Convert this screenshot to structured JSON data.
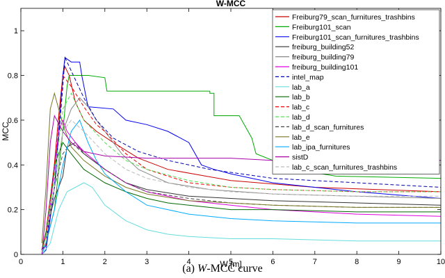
{
  "chart_data": {
    "type": "line",
    "title": "W-MCC",
    "xlabel": "W [m]",
    "ylabel": "MCC",
    "xlim": [
      0,
      10
    ],
    "ylim": [
      0,
      1.1
    ],
    "xticks": [
      0,
      1,
      2,
      3,
      4,
      5,
      6,
      7,
      8,
      9,
      10
    ],
    "yticks": [
      0,
      0.2,
      0.4,
      0.6,
      0.8,
      1
    ],
    "ytick_labels": [
      "0",
      "0.2",
      "0.4",
      "0.6",
      "0.8",
      "1"
    ],
    "legend_position": "top-right",
    "series": [
      {
        "name": "Freiburg79_scan_furnitures_trashbins",
        "color": "#cc0000",
        "dash": "",
        "x": [
          0.5,
          0.6,
          0.75,
          0.9,
          1.0,
          1.05,
          1.15,
          1.3,
          1.5,
          1.8,
          2.2,
          2.8,
          3.5,
          5,
          7,
          10
        ],
        "y": [
          0.01,
          0.04,
          0.3,
          0.62,
          0.8,
          0.84,
          0.8,
          0.68,
          0.6,
          0.55,
          0.5,
          0.43,
          0.38,
          0.33,
          0.3,
          0.28
        ]
      },
      {
        "name": "Freiburg101_scan",
        "color": "#00aa00",
        "dash": "",
        "x": [
          0.5,
          0.6,
          0.8,
          1.0,
          1.1,
          1.15,
          1.6,
          2.0,
          2.05,
          4.5,
          4.5,
          4.6,
          4.6,
          5.2,
          5.5,
          5.6,
          6.0,
          6.5,
          7.5,
          10
        ],
        "y": [
          0.02,
          0.05,
          0.2,
          0.55,
          0.75,
          0.8,
          0.8,
          0.79,
          0.73,
          0.73,
          0.72,
          0.72,
          0.62,
          0.62,
          0.52,
          0.45,
          0.42,
          0.38,
          0.35,
          0.34
        ]
      },
      {
        "name": "Freiburg101_scan_furnitures_trashbins",
        "color": "#0000ee",
        "dash": "",
        "x": [
          0.5,
          0.6,
          0.8,
          0.9,
          1.0,
          1.05,
          1.2,
          1.4,
          1.45,
          1.6,
          2.2,
          2.5,
          3.0,
          3.5,
          4.0,
          4.3,
          4.6,
          5.0,
          5.5,
          6.0,
          7.0,
          8.0,
          10
        ],
        "y": [
          0.0,
          0.02,
          0.3,
          0.55,
          0.8,
          0.88,
          0.86,
          0.86,
          0.8,
          0.66,
          0.65,
          0.6,
          0.58,
          0.55,
          0.5,
          0.4,
          0.38,
          0.36,
          0.34,
          0.32,
          0.3,
          0.28,
          0.25
        ]
      },
      {
        "name": "freiburg_building52",
        "color": "#333333",
        "dash": "",
        "x": [
          0.5,
          0.6,
          0.8,
          1.0,
          1.1,
          1.3,
          1.5,
          2.0,
          2.5,
          3.0,
          4.0,
          5.0,
          6.0,
          8.0,
          10
        ],
        "y": [
          0.02,
          0.1,
          0.25,
          0.35,
          0.48,
          0.5,
          0.45,
          0.38,
          0.32,
          0.29,
          0.26,
          0.25,
          0.24,
          0.23,
          0.22
        ]
      },
      {
        "name": "freiburg_building79",
        "color": "#888888",
        "dash": "",
        "x": [
          0.5,
          0.6,
          0.8,
          1.0,
          1.2,
          1.4,
          1.6,
          1.8,
          2.0,
          2.4,
          2.8,
          3.5,
          4.5,
          6.0,
          8.0,
          10
        ],
        "y": [
          0.02,
          0.08,
          0.3,
          0.55,
          0.65,
          0.7,
          0.66,
          0.6,
          0.55,
          0.45,
          0.38,
          0.32,
          0.29,
          0.27,
          0.26,
          0.25
        ]
      },
      {
        "name": "freiburg_building101",
        "color": "#dd00dd",
        "dash": "",
        "x": [
          0.5,
          0.6,
          0.75,
          0.9,
          1.0,
          1.1,
          1.3,
          1.5,
          2.0,
          2.5,
          3.0,
          3.5,
          4.0,
          5.0,
          6.0,
          7.0,
          8.0,
          10
        ],
        "y": [
          0.01,
          0.05,
          0.3,
          0.55,
          0.6,
          0.55,
          0.5,
          0.46,
          0.38,
          0.32,
          0.28,
          0.26,
          0.24,
          0.22,
          0.2,
          0.19,
          0.18,
          0.17
        ]
      },
      {
        "name": "intel_map",
        "color": "#0000aa",
        "dash": "5,3",
        "x": [
          0.5,
          0.6,
          0.8,
          1.0,
          1.05,
          1.2,
          1.5,
          1.8,
          2.2,
          2.8,
          3.5,
          4.5,
          6.0,
          8.0,
          10
        ],
        "y": [
          0.02,
          0.05,
          0.3,
          0.75,
          0.88,
          0.82,
          0.7,
          0.6,
          0.52,
          0.46,
          0.42,
          0.38,
          0.34,
          0.32,
          0.3
        ]
      },
      {
        "name": "lab_a",
        "color": "#66dddd",
        "dash": "",
        "x": [
          0.5,
          0.7,
          0.9,
          1.1,
          1.3,
          1.5,
          1.7,
          2.0,
          2.5,
          3.0,
          3.5,
          4.0,
          5.0,
          6.0,
          8.0,
          10
        ],
        "y": [
          0.0,
          0.05,
          0.2,
          0.28,
          0.3,
          0.32,
          0.3,
          0.22,
          0.15,
          0.11,
          0.09,
          0.08,
          0.07,
          0.07,
          0.06,
          0.06
        ]
      },
      {
        "name": "lab_b",
        "color": "#006600",
        "dash": "",
        "x": [
          0.5,
          0.6,
          0.8,
          1.0,
          1.2,
          1.5,
          2.0,
          2.5,
          3.0,
          3.5,
          4.0,
          5.0,
          6.0,
          8.0,
          10
        ],
        "y": [
          0.02,
          0.1,
          0.4,
          0.5,
          0.45,
          0.38,
          0.32,
          0.28,
          0.25,
          0.23,
          0.22,
          0.2,
          0.2,
          0.19,
          0.19
        ]
      },
      {
        "name": "lab_c",
        "color": "#ee0000",
        "dash": "5,3",
        "x": [
          0.5,
          0.6,
          0.8,
          1.0,
          1.2,
          1.5,
          1.8,
          2.0,
          2.5,
          3.0,
          4.0,
          5.0,
          6.0,
          8.0,
          10
        ],
        "y": [
          0.01,
          0.1,
          0.4,
          0.8,
          0.75,
          0.66,
          0.58,
          0.55,
          0.45,
          0.38,
          0.32,
          0.3,
          0.29,
          0.28,
          0.28
        ]
      },
      {
        "name": "lab_d",
        "color": "#55dd55",
        "dash": "5,3",
        "x": [
          0.5,
          0.6,
          0.8,
          1.0,
          1.2,
          1.5,
          2.0,
          2.5,
          3.0,
          4.0,
          5.0,
          6.0,
          8.0,
          10
        ],
        "y": [
          0.01,
          0.08,
          0.35,
          0.65,
          0.72,
          0.6,
          0.5,
          0.42,
          0.38,
          0.33,
          0.3,
          0.29,
          0.28,
          0.28
        ]
      },
      {
        "name": "lab_d_scan_furnitures",
        "color": "#444444",
        "dash": "5,3",
        "x": [
          0.5,
          0.6,
          0.8,
          1.0,
          1.2,
          1.5,
          2.0,
          2.5,
          3.0,
          4.0,
          5.0,
          6.0,
          8.0,
          10
        ],
        "y": [
          0.01,
          0.05,
          0.3,
          0.45,
          0.5,
          0.45,
          0.38,
          0.32,
          0.28,
          0.25,
          0.23,
          0.22,
          0.21,
          0.21
        ]
      },
      {
        "name": "lab_e",
        "color": "#777722",
        "dash": "",
        "x": [
          0.5,
          0.6,
          0.7,
          0.8,
          1.0,
          1.2,
          1.5,
          2.0,
          2.5,
          3.0,
          4.0,
          5.0,
          6.0,
          8.0,
          10
        ],
        "y": [
          0.05,
          0.3,
          0.65,
          0.72,
          0.58,
          0.48,
          0.42,
          0.35,
          0.3,
          0.27,
          0.24,
          0.23,
          0.22,
          0.21,
          0.21
        ]
      },
      {
        "name": "lab_ipa_furnitures",
        "color": "#00aaff",
        "dash": "",
        "x": [
          0.5,
          0.6,
          0.8,
          1.0,
          1.2,
          1.4,
          1.6,
          1.8,
          2.0,
          2.5,
          3.0,
          4.0,
          5.0,
          6.0,
          8.0,
          10
        ],
        "y": [
          0.0,
          0.05,
          0.2,
          0.4,
          0.55,
          0.6,
          0.5,
          0.42,
          0.36,
          0.28,
          0.22,
          0.18,
          0.16,
          0.15,
          0.14,
          0.14
        ]
      },
      {
        "name": "sistD",
        "color": "#aa00aa",
        "dash": "",
        "x": [
          0.5,
          0.6,
          0.7,
          0.8,
          1.0,
          1.2,
          1.5,
          2.0,
          3.0,
          4.0,
          5.0,
          6.0,
          8.0,
          10
        ],
        "y": [
          0.0,
          0.2,
          0.5,
          0.62,
          0.55,
          0.5,
          0.46,
          0.44,
          0.43,
          0.43,
          0.43,
          0.42,
          0.42,
          0.42
        ]
      },
      {
        "name": "lab_c_scan_furnitures_trashbins",
        "color": "#bbbbbb",
        "dash": "5,3",
        "x": [
          0.5,
          0.6,
          0.8,
          1.0,
          1.2,
          1.5,
          2.0,
          2.5,
          3.0,
          4.0,
          5.0,
          6.0,
          8.0,
          10
        ],
        "y": [
          0.01,
          0.06,
          0.3,
          0.55,
          0.6,
          0.55,
          0.45,
          0.38,
          0.34,
          0.3,
          0.28,
          0.27,
          0.26,
          0.26
        ]
      }
    ]
  },
  "caption": {
    "prefix": "(a)",
    "variable": "W",
    "suffix": "-MCC curve"
  }
}
